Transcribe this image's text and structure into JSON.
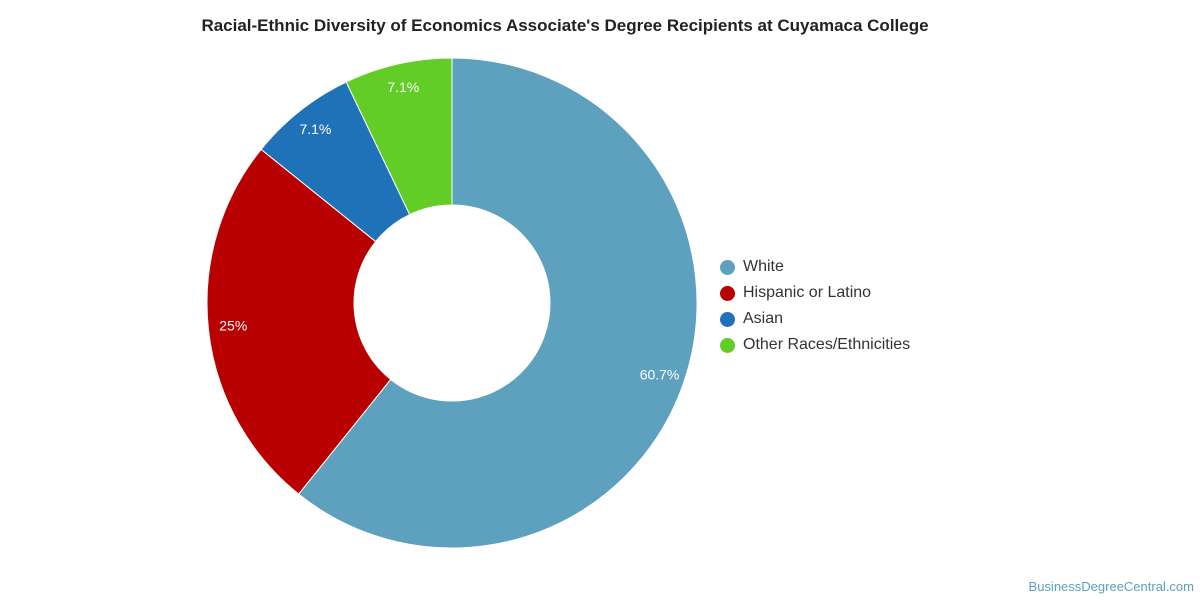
{
  "chart_data": {
    "type": "pie",
    "donut": true,
    "title": "Racial-Ethnic Diversity of Economics Associate's Degree Recipients at Cuyamaca College",
    "legend_position": "right",
    "series": [
      {
        "name": "White",
        "value": 60.7,
        "label": "60.7%",
        "color": "#5ea1be"
      },
      {
        "name": "Hispanic or Latino",
        "value": 25,
        "label": "25%",
        "color": "#b80000"
      },
      {
        "name": "Asian",
        "value": 7.1,
        "label": "7.1%",
        "color": "#1f72b8"
      },
      {
        "name": "Other Races/Ethnicities",
        "value": 7.1,
        "label": "7.1%",
        "color": "#62cd26"
      }
    ]
  },
  "watermark": "BusinessDegreeCentral.com"
}
